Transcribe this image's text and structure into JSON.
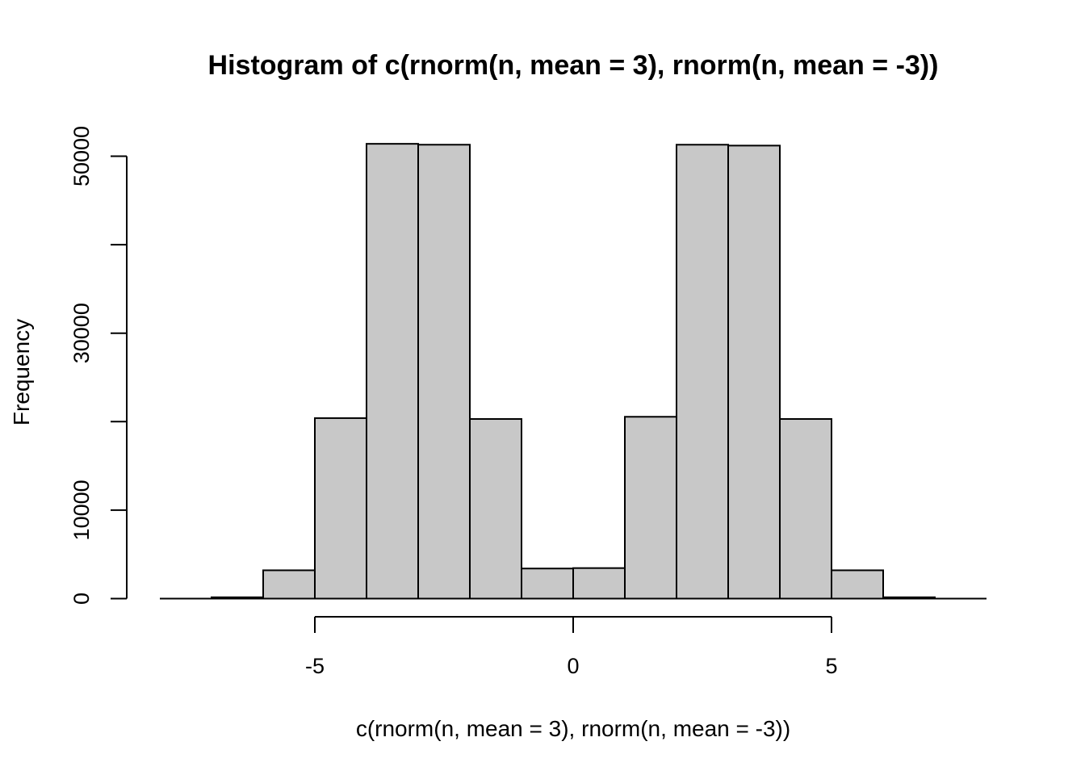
{
  "chart_data": {
    "type": "histogram",
    "title": "Histogram of c(rnorm(n, mean = 3), rnorm(n, mean = -3))",
    "xlabel": "c(rnorm(n, mean = 3), rnorm(n, mean = -3))",
    "ylabel": "Frequency",
    "bins": [
      {
        "from": -7,
        "to": -6,
        "count": 150
      },
      {
        "from": -6,
        "to": -5,
        "count": 3200
      },
      {
        "from": -5,
        "to": -4,
        "count": 20400
      },
      {
        "from": -4,
        "to": -3,
        "count": 51400
      },
      {
        "from": -3,
        "to": -2,
        "count": 51300
      },
      {
        "from": -2,
        "to": -1,
        "count": 20300
      },
      {
        "from": -1,
        "to": 0,
        "count": 3400
      },
      {
        "from": 0,
        "to": 1,
        "count": 3450
      },
      {
        "from": 1,
        "to": 2,
        "count": 20550
      },
      {
        "from": 2,
        "to": 3,
        "count": 51300
      },
      {
        "from": 3,
        "to": 4,
        "count": 51200
      },
      {
        "from": 4,
        "to": 5,
        "count": 20300
      },
      {
        "from": 5,
        "to": 6,
        "count": 3200
      },
      {
        "from": 6,
        "to": 7,
        "count": 150
      }
    ],
    "xlim": [
      -8,
      8
    ],
    "ylim": [
      0,
      52000
    ],
    "xticks": [
      -5,
      0,
      5
    ],
    "yticks": [
      0,
      10000,
      20000,
      30000,
      40000,
      50000
    ],
    "yticks_labeled": [
      "0",
      "10000",
      "30000",
      "50000"
    ],
    "xticks_labeled": [
      "-5",
      "0",
      "5"
    ],
    "bar_fill": "#c8c8c8",
    "bar_stroke": "#000000",
    "grid": false,
    "legend": false
  }
}
